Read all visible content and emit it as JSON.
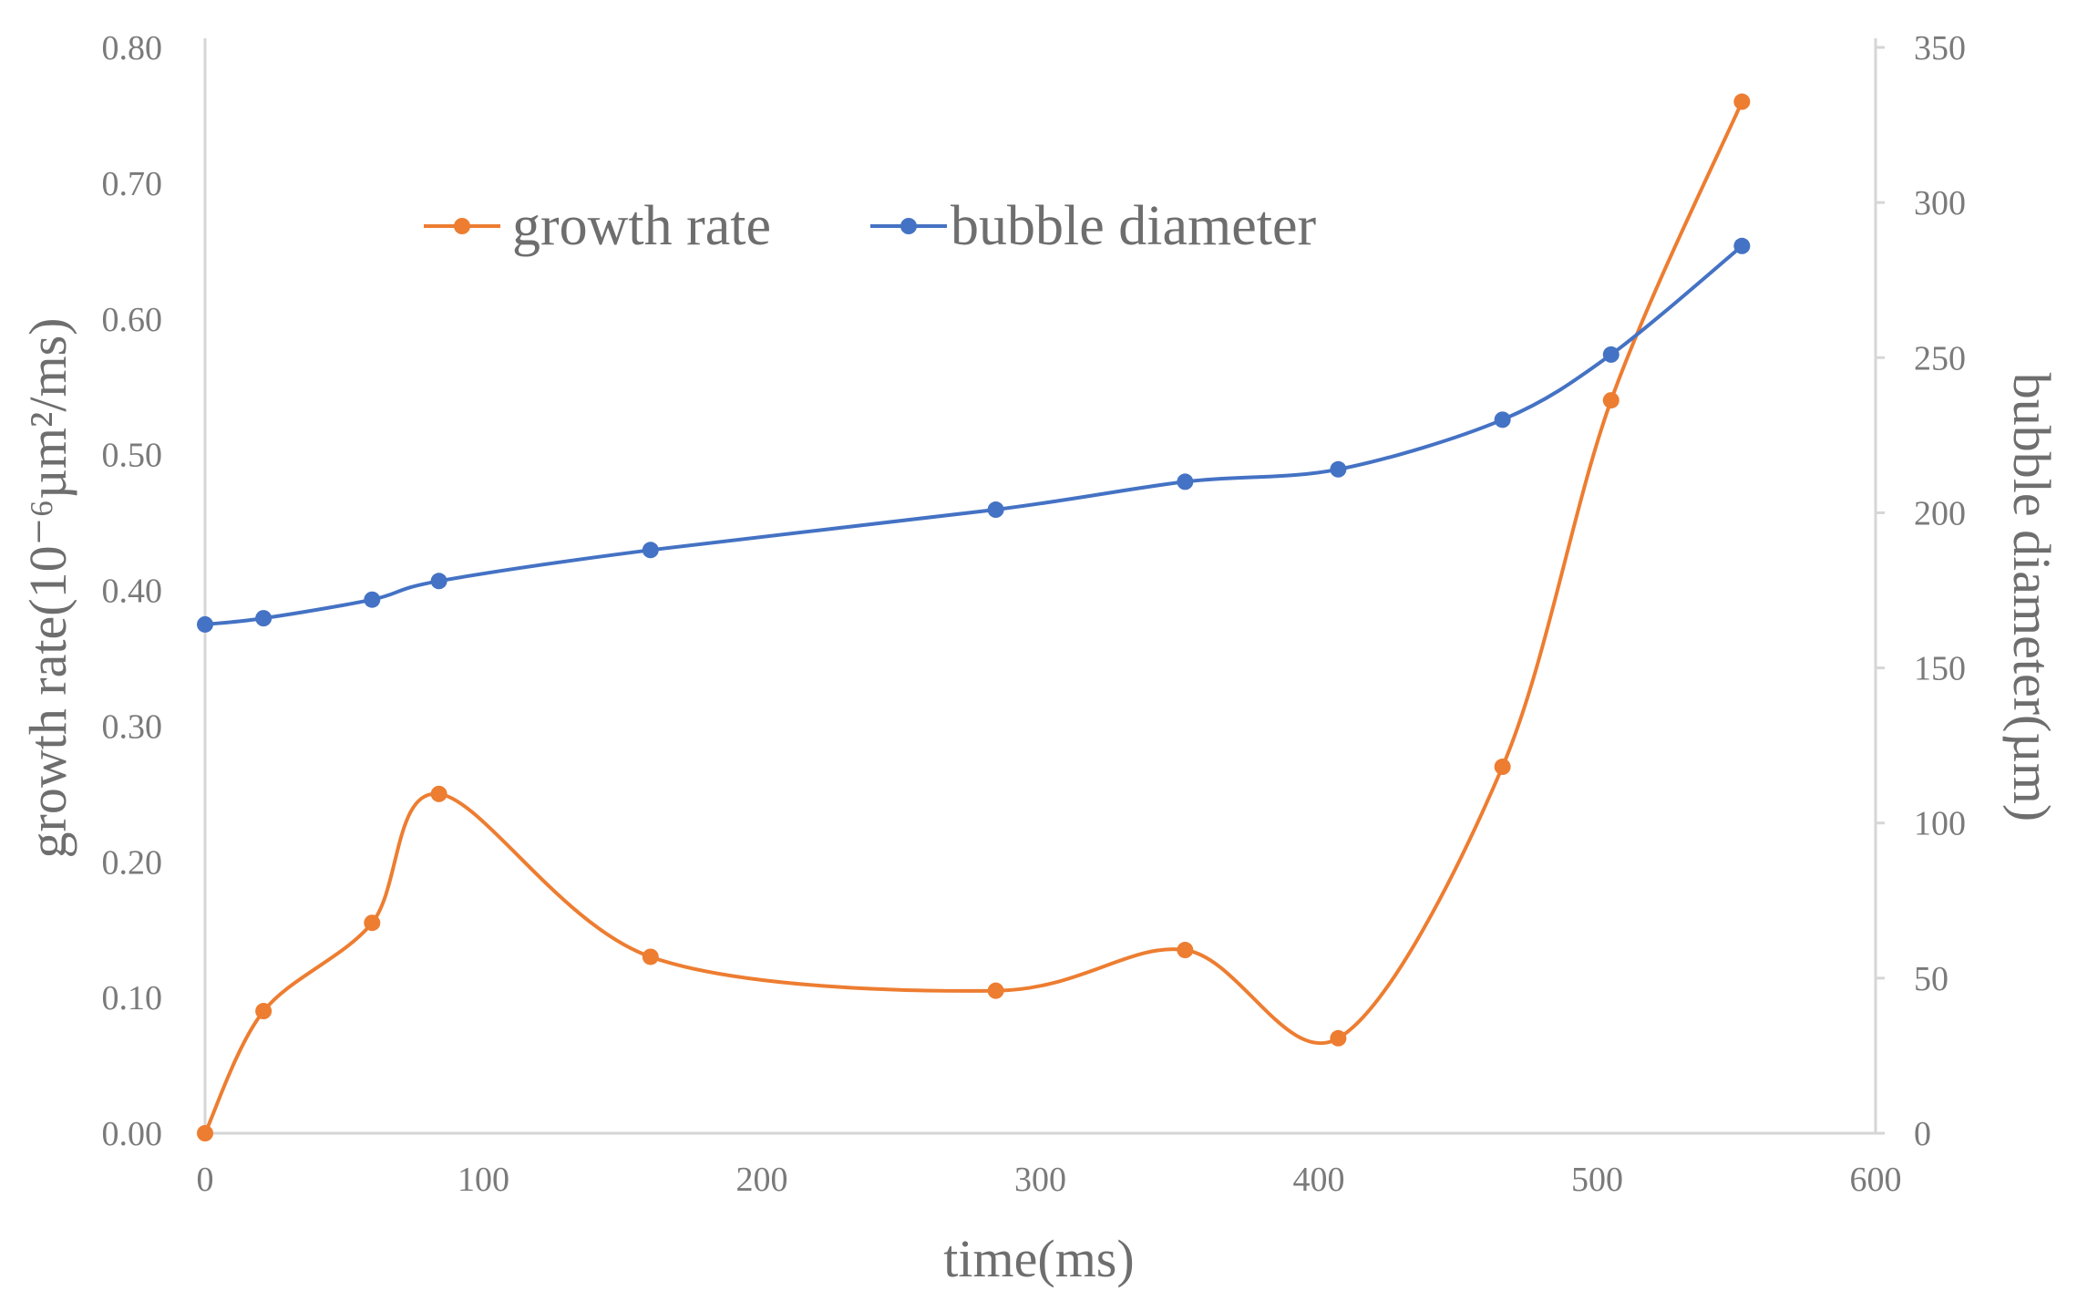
{
  "chart_data": {
    "type": "line",
    "title": "",
    "xlabel": "time(ms)",
    "ylabel_left": "growth rate(10⁻⁶µm²/ms)",
    "ylabel_right": "bubble diameter(µm)",
    "xlim": [
      0,
      600
    ],
    "ylim_left": [
      0,
      0.8
    ],
    "ylim_right": [
      0,
      350
    ],
    "x_ticks": [
      "0",
      "100",
      "200",
      "300",
      "400",
      "500",
      "600"
    ],
    "y_left_ticks": [
      "0.00",
      "0.10",
      "0.20",
      "0.30",
      "0.40",
      "0.50",
      "0.60",
      "0.70",
      "0.80"
    ],
    "y_right_ticks": [
      "0",
      "50",
      "100",
      "150",
      "200",
      "250",
      "300",
      "350"
    ],
    "grid": false,
    "legend_position": "top-left",
    "series": [
      {
        "name": "growth rate",
        "axis": "left",
        "color": "#ED7D31",
        "x": [
          0,
          21,
          60,
          84,
          160,
          284,
          352,
          407,
          466,
          505,
          552
        ],
        "y": [
          0.0,
          0.09,
          0.155,
          0.25,
          0.13,
          0.105,
          0.135,
          0.07,
          0.27,
          0.54,
          0.76
        ]
      },
      {
        "name": "bubble diameter",
        "axis": "right",
        "color": "#4472C4",
        "x": [
          0,
          21,
          60,
          84,
          160,
          284,
          352,
          407,
          466,
          505,
          552
        ],
        "y": [
          164,
          166,
          172,
          178,
          188,
          201,
          210,
          214,
          230,
          251,
          286
        ]
      }
    ]
  }
}
